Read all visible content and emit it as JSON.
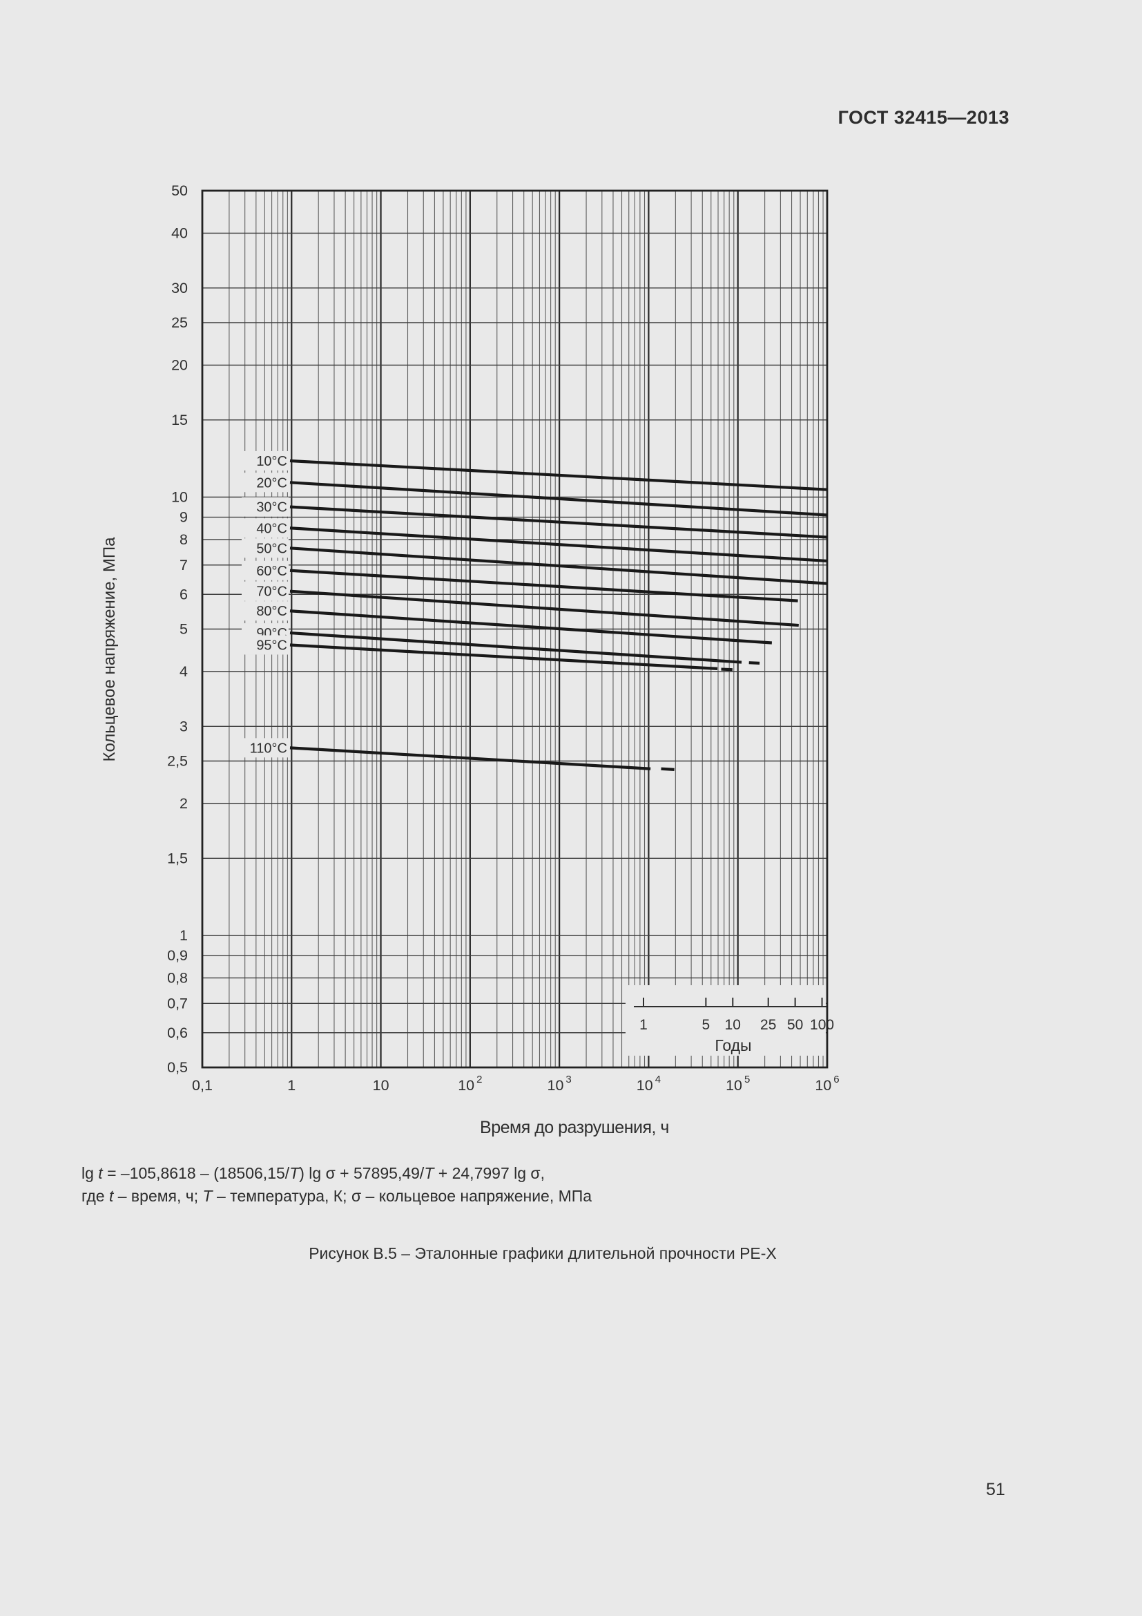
{
  "page": {
    "header": "ГОСТ 32415—2013",
    "caption": "Рисунок В.5 – Эталонные графики длительной прочности PE-X",
    "page_number": "51"
  },
  "formula": {
    "line1": [
      {
        "t": "lg "
      },
      {
        "t": "t",
        "i": true
      },
      {
        "t": " = –105,8618 – (18506,15/"
      },
      {
        "t": "T",
        "i": true
      },
      {
        "t": ") lg σ + 57895,49/"
      },
      {
        "t": "T",
        "i": true
      },
      {
        "t": " + 24,7997 lg σ,"
      }
    ],
    "line2": [
      {
        "t": "где "
      },
      {
        "t": "t",
        "i": true
      },
      {
        "t": " – время, ч; "
      },
      {
        "t": "T",
        "i": true
      },
      {
        "t": " – температура, К; σ – кольцевое напряжение, МПа"
      }
    ]
  },
  "colors": {
    "background": "#e9e9e9",
    "ink": "#2f2f2f",
    "grid_minor": "#606060",
    "grid_major": "#282828",
    "grid_horizontal": "#3f3f3f",
    "border": "#222222",
    "curve": "#191919"
  },
  "chart_data": {
    "type": "line",
    "x_scale": "log",
    "y_scale": "log",
    "xlim": [
      0.1,
      1000000
    ],
    "ylim": [
      0.5,
      50
    ],
    "xlabel": "Время до разрушения, ч",
    "ylabel": "Кольцевое напряжение, МПа",
    "grid": "on",
    "x_ticks": [
      {
        "value": 0.1,
        "label": "0,1"
      },
      {
        "value": 1,
        "label": "1"
      },
      {
        "value": 10,
        "label": "10"
      },
      {
        "value": 100,
        "base": "10",
        "exp": "2"
      },
      {
        "value": 1000,
        "base": "10",
        "exp": "3"
      },
      {
        "value": 10000,
        "base": "10",
        "exp": "4"
      },
      {
        "value": 100000,
        "base": "10",
        "exp": "5"
      },
      {
        "value": 1000000,
        "base": "10",
        "exp": "6"
      }
    ],
    "y_ticks": [
      {
        "value": 50,
        "label": "50"
      },
      {
        "value": 40,
        "label": "40"
      },
      {
        "value": 30,
        "label": "30"
      },
      {
        "value": 25,
        "label": "25"
      },
      {
        "value": 20,
        "label": "20"
      },
      {
        "value": 15,
        "label": "15"
      },
      {
        "value": 10,
        "label": "10"
      },
      {
        "value": 9,
        "label": "9"
      },
      {
        "value": 8,
        "label": "8"
      },
      {
        "value": 7,
        "label": "7"
      },
      {
        "value": 6,
        "label": "6"
      },
      {
        "value": 5,
        "label": "5"
      },
      {
        "value": 4,
        "label": "4"
      },
      {
        "value": 3,
        "label": "3"
      },
      {
        "value": 2.5,
        "label": "2,5"
      },
      {
        "value": 2,
        "label": "2"
      },
      {
        "value": 1.5,
        "label": "1,5"
      },
      {
        "value": 1,
        "label": "1"
      },
      {
        "value": 0.9,
        "label": "0,9"
      },
      {
        "value": 0.8,
        "label": "0,8"
      },
      {
        "value": 0.7,
        "label": "0,7"
      },
      {
        "value": 0.6,
        "label": "0,6"
      },
      {
        "value": 0.5,
        "label": "0,5"
      }
    ],
    "series": [
      {
        "name": "10°C",
        "solid": [
          [
            0.96,
            12.1
          ],
          [
            1000000,
            10.4
          ]
        ]
      },
      {
        "name": "20°C",
        "solid": [
          [
            0.96,
            10.8
          ],
          [
            1000000,
            9.1
          ]
        ]
      },
      {
        "name": "30°C",
        "solid": [
          [
            0.96,
            9.5
          ],
          [
            1000000,
            8.1
          ]
        ]
      },
      {
        "name": "40°C",
        "solid": [
          [
            0.96,
            8.5
          ],
          [
            1000000,
            7.15
          ]
        ]
      },
      {
        "name": "50°C",
        "solid": [
          [
            0.96,
            7.65
          ],
          [
            1000000,
            6.35
          ]
        ]
      },
      {
        "name": "60°C",
        "solid": [
          [
            0.96,
            6.8
          ],
          [
            470000,
            5.8
          ]
        ]
      },
      {
        "name": "70°C",
        "solid": [
          [
            0.96,
            6.1
          ],
          [
            480000,
            5.1
          ]
        ]
      },
      {
        "name": "80°C",
        "solid": [
          [
            0.96,
            5.5
          ],
          [
            240000,
            4.65
          ]
        ]
      },
      {
        "name": "90°C",
        "solid": [
          [
            0.96,
            4.9
          ],
          [
            110000,
            4.2
          ]
        ],
        "dash": [
          [
            133000,
            4.19
          ],
          [
            175000,
            4.18
          ]
        ]
      },
      {
        "name": "95°C",
        "solid": [
          [
            0.96,
            4.6
          ],
          [
            59000,
            4.06
          ]
        ],
        "dash": [
          [
            65000,
            4.05
          ],
          [
            87000,
            4.04
          ]
        ]
      },
      {
        "name": "110°C",
        "solid": [
          [
            0.96,
            2.68
          ],
          [
            10500,
            2.4
          ]
        ],
        "dash": [
          [
            13800,
            2.4
          ],
          [
            19400,
            2.39
          ]
        ]
      }
    ],
    "years_axis": {
      "label": "Годы",
      "ticks": [
        {
          "value": 1,
          "label": "1"
        },
        {
          "value": 5,
          "label": "5"
        },
        {
          "value": 10,
          "label": "10"
        },
        {
          "value": 25,
          "label": "25"
        },
        {
          "value": 50,
          "label": "50"
        },
        {
          "value": 100,
          "label": "100"
        }
      ]
    }
  }
}
